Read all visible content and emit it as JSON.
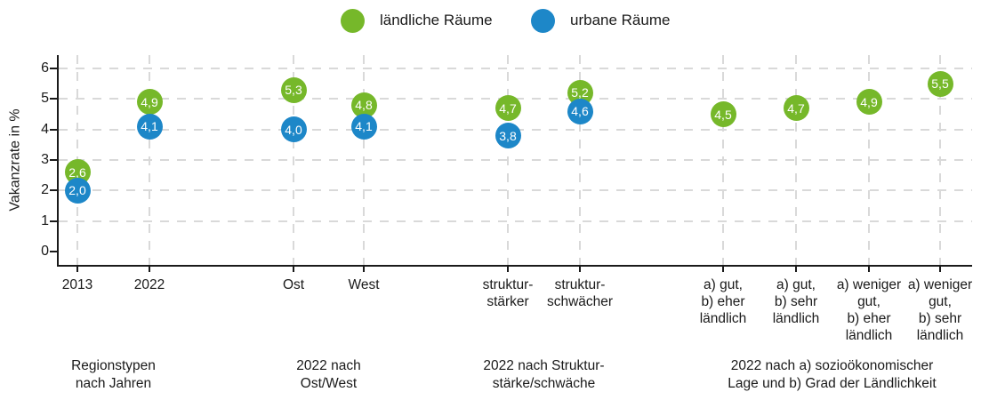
{
  "legend": {
    "items": [
      {
        "id": "laendliche-raeume",
        "label": "ländliche Räume",
        "color": "#76b82a"
      },
      {
        "id": "urbane-raeume",
        "label": "urbane Räume",
        "color": "#1d87c8"
      }
    ]
  },
  "chart_data": {
    "type": "scatter",
    "title": "",
    "ylabel": "Vakanzrate in %",
    "ylim": [
      0,
      6
    ],
    "yticks": [
      "0",
      "1",
      "2",
      "3",
      "4",
      "5",
      "6"
    ],
    "grid": "dashed horizontal and vertical gridlines",
    "legend_position": "top center",
    "decimal_separator": ",",
    "categories": [
      {
        "lines": [
          "2013"
        ]
      },
      {
        "lines": [
          "2022"
        ]
      },
      {
        "lines": [
          "Ost"
        ]
      },
      {
        "lines": [
          "West"
        ]
      },
      {
        "lines": [
          "struktur-",
          "stärker"
        ]
      },
      {
        "lines": [
          "struktur-",
          "schwächer"
        ]
      },
      {
        "lines": [
          "a) gut,",
          "b) eher",
          "ländlich"
        ]
      },
      {
        "lines": [
          "a) gut,",
          "b) sehr",
          "ländlich"
        ]
      },
      {
        "lines": [
          "a) weniger",
          "gut,",
          "b) eher",
          "ländlich"
        ]
      },
      {
        "lines": [
          "a) weniger",
          "gut,",
          "b) sehr",
          "ländlich"
        ]
      }
    ],
    "groups": [
      {
        "lines": [
          "Regionstypen",
          "nach Jahren"
        ],
        "members": [
          0,
          1
        ]
      },
      {
        "lines": [
          "2022 nach",
          "Ost/West"
        ],
        "members": [
          2,
          3
        ]
      },
      {
        "lines": [
          "2022 nach Struktur-",
          "stärke/schwäche"
        ],
        "members": [
          4,
          5
        ]
      },
      {
        "lines": [
          "2022 nach a) sozioökonomischer",
          "Lage und b) Grad der Ländlichkeit"
        ],
        "members": [
          6,
          7,
          8,
          9
        ]
      }
    ],
    "series": [
      {
        "name": "ländliche Räume",
        "color": "#76b82a",
        "values": [
          2.6,
          4.9,
          5.3,
          4.8,
          4.7,
          5.2,
          4.5,
          4.7,
          4.9,
          5.5
        ],
        "labels": [
          "2,6",
          "4,9",
          "5,3",
          "4,8",
          "4,7",
          "5,2",
          "4,5",
          "4,7",
          "4,9",
          "5,5"
        ]
      },
      {
        "name": "urbane Räume",
        "color": "#1d87c8",
        "values": [
          2.0,
          4.1,
          4.0,
          4.1,
          3.8,
          4.6,
          null,
          null,
          null,
          null
        ],
        "labels": [
          "2,0",
          "4,1",
          "4,0",
          "4,1",
          "3,8",
          "4,6",
          null,
          null,
          null,
          null
        ]
      }
    ]
  }
}
